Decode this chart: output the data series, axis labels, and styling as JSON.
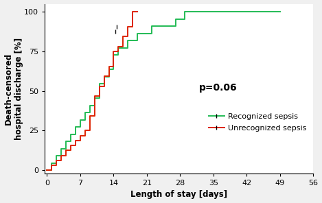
{
  "xlabel": "Length of stay [days]",
  "ylabel": "Death-censored\nhospital discharge [%]",
  "pvalue_text": "p=0.06",
  "pvalue_x": 36,
  "pvalue_y": 52,
  "xlim": [
    -0.5,
    56
  ],
  "ylim": [
    -2,
    105
  ],
  "xticks": [
    0,
    7,
    14,
    21,
    28,
    35,
    42,
    49,
    56
  ],
  "yticks": [
    0,
    25,
    50,
    75,
    100
  ],
  "recognized_color": "#22bb55",
  "unrecognized_color": "#dd2200",
  "censored_color": "#111111",
  "recognized_x": [
    0,
    1,
    2,
    3,
    4,
    5,
    6,
    7,
    8,
    9,
    10,
    11,
    12,
    13,
    14,
    15,
    17,
    19,
    22,
    27,
    29,
    49
  ],
  "recognized_y": [
    0,
    4.5,
    9.1,
    13.6,
    18.2,
    22.7,
    27.3,
    31.8,
    36.4,
    40.9,
    45.5,
    54.5,
    59.1,
    63.6,
    72.7,
    77.3,
    81.8,
    86.4,
    90.9,
    95.5,
    100.0,
    100.0
  ],
  "unrecognized_x": [
    0,
    1,
    2,
    3,
    4,
    5,
    6,
    7,
    8,
    9,
    10,
    11,
    12,
    13,
    14,
    15,
    16,
    17,
    18,
    19
  ],
  "unrecognized_y": [
    0,
    3.1,
    6.3,
    9.4,
    12.5,
    15.6,
    18.8,
    21.9,
    25.0,
    34.4,
    46.9,
    53.1,
    59.4,
    65.6,
    75.0,
    78.1,
    84.4,
    90.6,
    100.0,
    100.0
  ],
  "censored_recognized_x": 14.3,
  "censored_recognized_y": 87.5,
  "censored_unrecognized_x": 14.6,
  "censored_unrecognized_y": 90.6,
  "legend_recognized": "Recognized sepsis",
  "legend_unrecognized": "Unrecognized sepsis",
  "line_width": 1.4,
  "font_size_axis_label": 8.5,
  "font_size_ticks": 8,
  "font_size_pvalue": 10,
  "font_size_legend": 8,
  "bg_color": "#f0f0f0",
  "plot_bg_color": "#ffffff"
}
